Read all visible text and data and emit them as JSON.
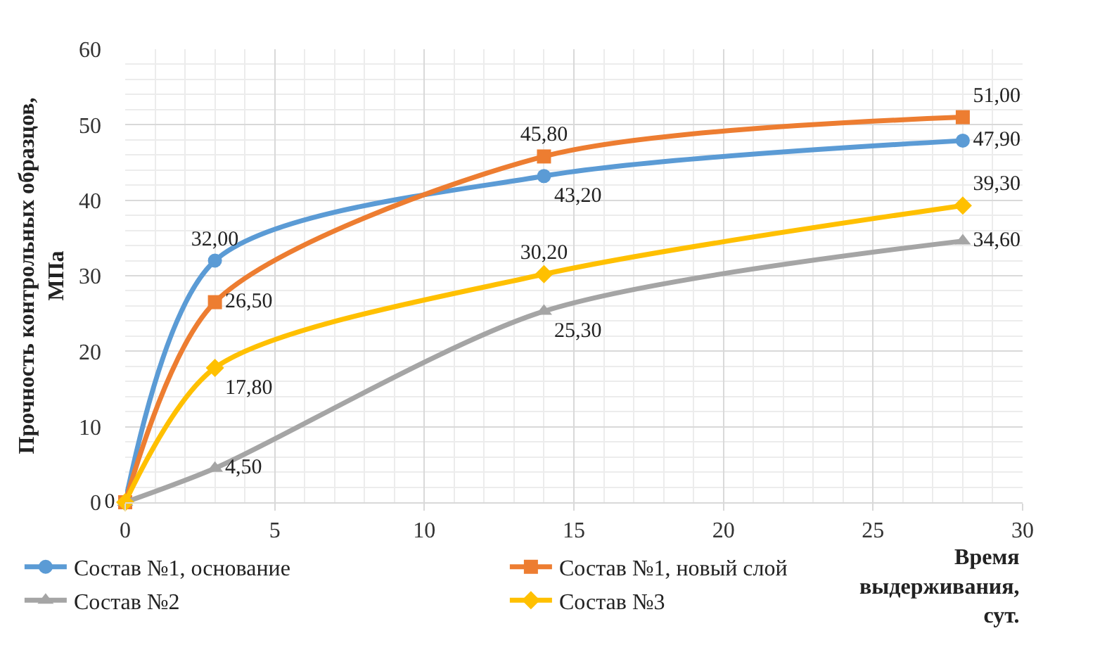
{
  "chart_data": {
    "type": "line",
    "x": [
      0,
      3,
      14,
      28
    ],
    "xlabel": "Время\nвыдерживания,\nсут.",
    "ylabel": "Прочность контрольных образцов,\nМПа",
    "xlim": [
      0,
      30
    ],
    "xticks": [
      0,
      5,
      10,
      15,
      20,
      25,
      30
    ],
    "ylim": [
      0,
      60
    ],
    "yticks": [
      0,
      10,
      20,
      30,
      40,
      50,
      60
    ],
    "grid": true,
    "legend": "bottom",
    "series": [
      {
        "name": "Состав №1, основание",
        "color": "#5b9bd5",
        "marker": "circle",
        "values": [
          0,
          32.0,
          43.2,
          47.9
        ],
        "value_labels": [
          "0",
          "32,00",
          "43,20",
          "47,90"
        ]
      },
      {
        "name": "Состав №1, новый слой",
        "color": "#ed7d31",
        "marker": "square",
        "values": [
          0,
          26.5,
          45.8,
          51.0
        ],
        "value_labels": [
          null,
          "26,50",
          "45,80",
          "51,00"
        ]
      },
      {
        "name": "Состав №2",
        "color": "#a5a5a5",
        "marker": "triangle",
        "values": [
          0,
          4.5,
          25.3,
          34.6
        ],
        "value_labels": [
          null,
          "4,50",
          "25,30",
          "34,60"
        ]
      },
      {
        "name": "Состав №3",
        "color": "#ffc000",
        "marker": "diamond",
        "values": [
          0,
          17.8,
          30.2,
          39.3
        ],
        "value_labels": [
          null,
          "17,80",
          "30,20",
          "39,30"
        ]
      }
    ]
  }
}
